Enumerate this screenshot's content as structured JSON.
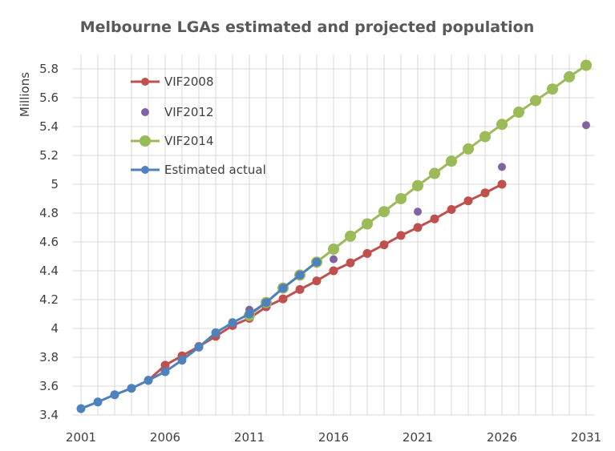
{
  "chart_data": {
    "type": "line",
    "title": "Melbourne LGAs estimated and projected population",
    "ylabel": "Millions",
    "xlabel": "",
    "xlim": [
      2001,
      2031
    ],
    "ylim": [
      3.4,
      5.8
    ],
    "x_ticks": [
      2001,
      2006,
      2011,
      2016,
      2021,
      2026,
      2031
    ],
    "y_ticks": [
      3.4,
      3.6,
      3.8,
      4,
      4.2,
      4.4,
      4.6,
      4.8,
      5,
      5.2,
      5.4,
      5.6,
      5.8
    ],
    "y_tick_labels": [
      "3.4",
      "3.6",
      "3.8",
      "4",
      "4.2",
      "4.4",
      "4.6",
      "4.8",
      "5",
      "5.2",
      "5.4",
      "5.6",
      "5.8"
    ],
    "grid": true,
    "legend_position": "top-left",
    "series": [
      {
        "name": "VIF2008",
        "color": "#c0504d",
        "style": "line-markers",
        "x": [
          2005,
          2006,
          2007,
          2008,
          2009,
          2010,
          2011,
          2012,
          2013,
          2014,
          2015,
          2016,
          2017,
          2018,
          2019,
          2020,
          2021,
          2022,
          2023,
          2024,
          2025,
          2026
        ],
        "y": [
          3.64,
          3.745,
          3.81,
          3.875,
          3.945,
          4.02,
          4.07,
          4.15,
          4.205,
          4.27,
          4.33,
          4.4,
          4.455,
          4.52,
          4.58,
          4.645,
          4.7,
          4.76,
          4.825,
          4.885,
          4.94,
          5.0
        ]
      },
      {
        "name": "VIF2012",
        "color": "#8064a2",
        "style": "markers",
        "x": [
          2011,
          2016,
          2021,
          2026,
          2031
        ],
        "y": [
          4.13,
          4.48,
          4.81,
          5.12,
          5.41
        ]
      },
      {
        "name": "VIF2014",
        "color": "#9bbb59",
        "style": "line-markers-large",
        "x": [
          2011,
          2012,
          2013,
          2014,
          2015,
          2016,
          2017,
          2018,
          2019,
          2020,
          2021,
          2022,
          2023,
          2024,
          2025,
          2026,
          2027,
          2028,
          2029,
          2030,
          2031
        ],
        "y": [
          4.09,
          4.18,
          4.28,
          4.37,
          4.46,
          4.55,
          4.64,
          4.725,
          4.81,
          4.9,
          4.99,
          5.075,
          5.16,
          5.245,
          5.33,
          5.415,
          5.5,
          5.58,
          5.66,
          5.745,
          5.825
        ]
      },
      {
        "name": "Estimated actual",
        "color": "#4f81bd",
        "style": "line-markers",
        "x": [
          2001,
          2002,
          2003,
          2004,
          2005,
          2006,
          2007,
          2008,
          2009,
          2010,
          2011,
          2012,
          2013,
          2014,
          2015
        ],
        "y": [
          3.444,
          3.49,
          3.54,
          3.585,
          3.64,
          3.7,
          3.78,
          3.87,
          3.97,
          4.04,
          4.1,
          4.18,
          4.28,
          4.37,
          4.46
        ]
      }
    ]
  }
}
